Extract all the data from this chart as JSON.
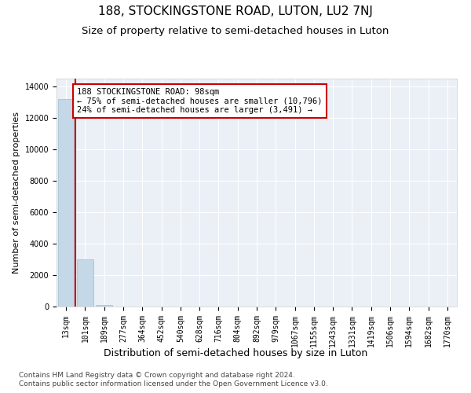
{
  "title1": "188, STOCKINGSTONE ROAD, LUTON, LU2 7NJ",
  "title2": "Size of property relative to semi-detached houses in Luton",
  "xlabel": "Distribution of semi-detached houses by size in Luton",
  "ylabel": "Number of semi-detached properties",
  "categories": [
    "13sqm",
    "101sqm",
    "189sqm",
    "277sqm",
    "364sqm",
    "452sqm",
    "540sqm",
    "628sqm",
    "716sqm",
    "804sqm",
    "892sqm",
    "979sqm",
    "1067sqm",
    "1155sqm",
    "1243sqm",
    "1331sqm",
    "1419sqm",
    "1506sqm",
    "1594sqm",
    "1682sqm",
    "1770sqm"
  ],
  "values": [
    13200,
    3000,
    120,
    15,
    4,
    2,
    1,
    1,
    0,
    0,
    0,
    0,
    0,
    0,
    0,
    0,
    0,
    0,
    0,
    0,
    0
  ],
  "bar_color": "#c5d8e8",
  "bar_edge_color": "#9bbdd0",
  "annotation_title": "188 STOCKINGSTONE ROAD: 98sqm",
  "annotation_line1": "← 75% of semi-detached houses are smaller (10,796)",
  "annotation_line2": "24% of semi-detached houses are larger (3,491) →",
  "annotation_box_color": "#ffffff",
  "annotation_box_edge": "#cc0000",
  "property_line_color": "#cc0000",
  "ylim": [
    0,
    14500
  ],
  "yticks": [
    0,
    2000,
    4000,
    6000,
    8000,
    10000,
    12000,
    14000
  ],
  "background_color": "#eaf0f6",
  "footer1": "Contains HM Land Registry data © Crown copyright and database right 2024.",
  "footer2": "Contains public sector information licensed under the Open Government Licence v3.0.",
  "title1_fontsize": 11,
  "title2_fontsize": 9.5,
  "xlabel_fontsize": 9,
  "ylabel_fontsize": 8,
  "tick_fontsize": 7,
  "annotation_fontsize": 7.5,
  "footer_fontsize": 6.5
}
